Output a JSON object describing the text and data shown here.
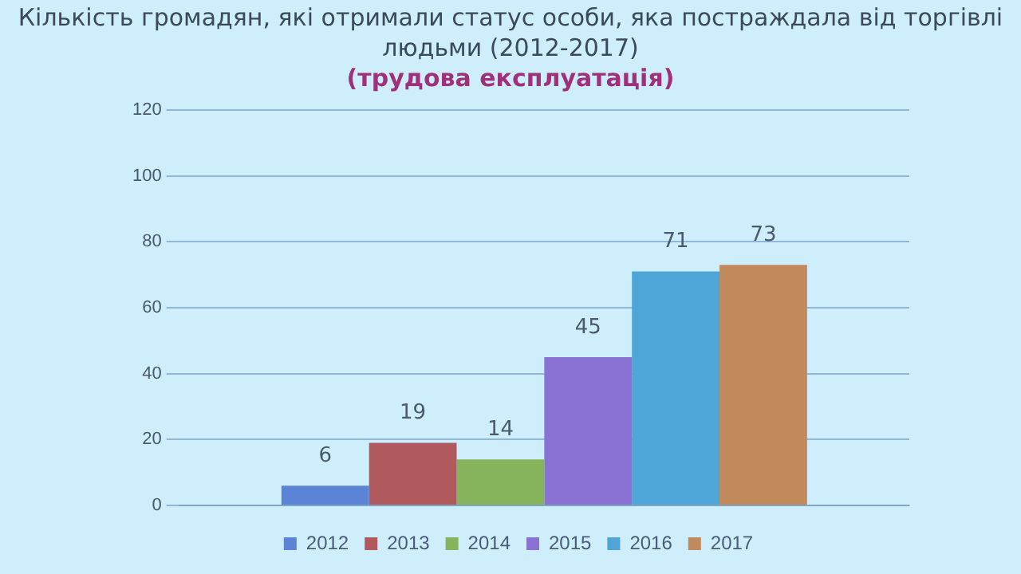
{
  "chart_data": {
    "type": "bar",
    "title": "Кількість громадян, які отримали статус особи, яка постраждала від торгівлі людьми (2012-2017)",
    "subtitle": "(трудова експлуатація)",
    "categories": [
      null
    ],
    "series": [
      {
        "name": "2012",
        "color": "#5b84d6",
        "values": [
          6
        ]
      },
      {
        "name": "2013",
        "color": "#b05a5e",
        "values": [
          19
        ]
      },
      {
        "name": "2014",
        "color": "#86b45c",
        "values": [
          14
        ]
      },
      {
        "name": "2015",
        "color": "#8a72d4",
        "values": [
          45
        ]
      },
      {
        "name": "2016",
        "color": "#4ea6d8",
        "values": [
          71
        ]
      },
      {
        "name": "2017",
        "color": "#c08a5c",
        "values": [
          73
        ]
      }
    ],
    "data_labels": true,
    "ylim": [
      0,
      120
    ],
    "yticks": [
      0,
      20,
      40,
      60,
      80,
      100,
      120
    ],
    "grid": "y",
    "legend": "bottom"
  }
}
